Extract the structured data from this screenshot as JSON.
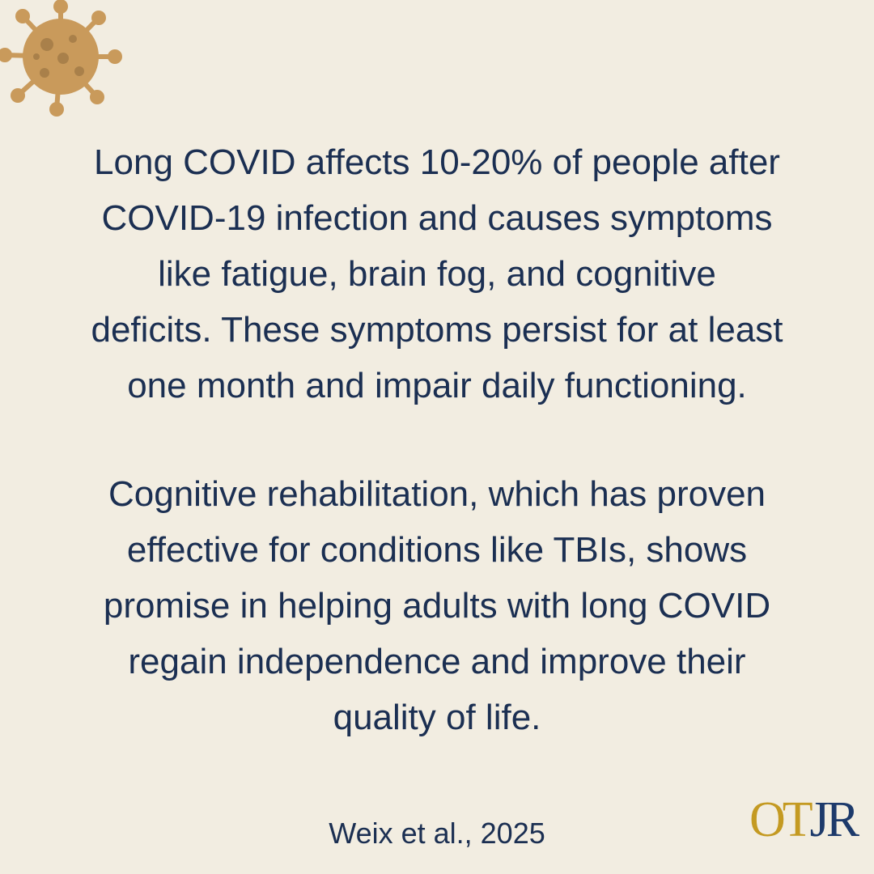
{
  "paragraphs": [
    [
      "Long COVID affects 10-20% of people after",
      "COVID-19 infection and causes symptoms",
      "like fatigue, brain fog, and cognitive",
      "deficits. These symptoms persist for at least",
      "one month and impair daily functioning."
    ],
    [
      "Cognitive rehabilitation, which has proven",
      "effective for conditions like TBIs, shows",
      "promise in helping adults with long COVID",
      "regain independence and improve their",
      "quality of life."
    ]
  ],
  "citation": "Weix et al., 2025",
  "logo": {
    "gold": "OT",
    "navy": "JR"
  }
}
